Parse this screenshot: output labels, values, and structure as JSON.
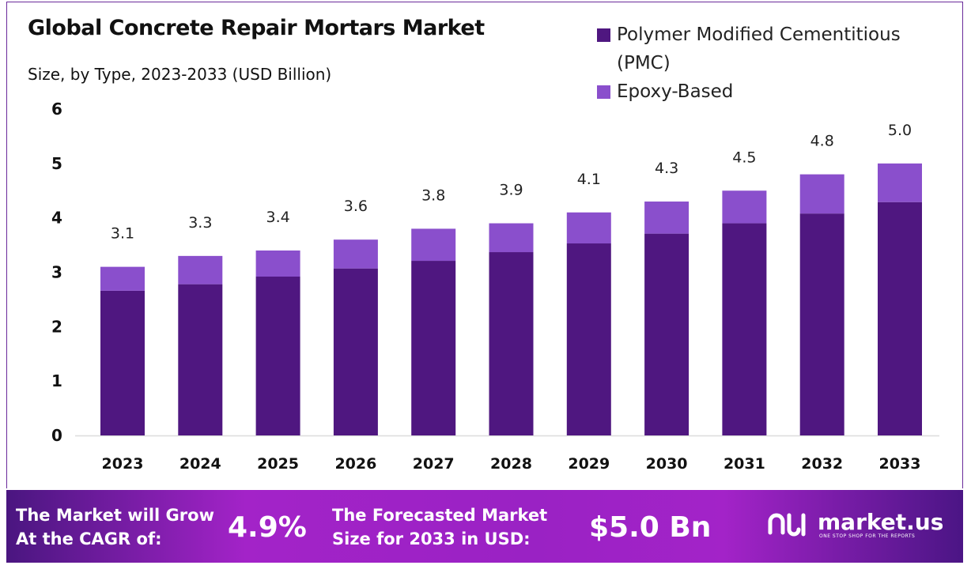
{
  "chart_data": {
    "type": "bar",
    "stacked": true,
    "title": "Global Concrete Repair Mortars Market",
    "subtitle": "Size, by Type, 2023-2033 (USD Billion)",
    "categories": [
      "2023",
      "2024",
      "2025",
      "2026",
      "2027",
      "2028",
      "2029",
      "2030",
      "2031",
      "2032",
      "2033"
    ],
    "series": [
      {
        "name": "Polymer Modified Cementitious (PMC)",
        "color": "#4f1780",
        "values": [
          2.66,
          2.78,
          2.92,
          3.07,
          3.21,
          3.37,
          3.53,
          3.71,
          3.9,
          4.08,
          4.29
        ]
      },
      {
        "name": "Epoxy-Based",
        "color": "#8a4fcc",
        "values": [
          0.44,
          0.52,
          0.48,
          0.53,
          0.59,
          0.53,
          0.57,
          0.59,
          0.6,
          0.72,
          0.71
        ]
      }
    ],
    "totals": [
      "3.1",
      "3.3",
      "3.4",
      "3.6",
      "3.8",
      "3.9",
      "4.1",
      "4.3",
      "4.5",
      "4.8",
      "5.0"
    ],
    "yticks": [
      "0",
      "1",
      "2",
      "3",
      "4",
      "5",
      "6"
    ],
    "ylim": [
      0,
      6
    ],
    "xlabel": "",
    "ylabel": "",
    "grid": false,
    "legend": "top-right"
  },
  "footer": {
    "cagr_label_1": "The Market will Grow",
    "cagr_label_2": "At the CAGR of:",
    "cagr_value": "4.9%",
    "forecast_label_1": "The Forecasted Market",
    "forecast_label_2": "Size for 2033 in USD:",
    "forecast_value": "$5.0 Bn",
    "logo_name": "market.us",
    "logo_tagline": "ONE STOP SHOP FOR THE REPORTS"
  }
}
